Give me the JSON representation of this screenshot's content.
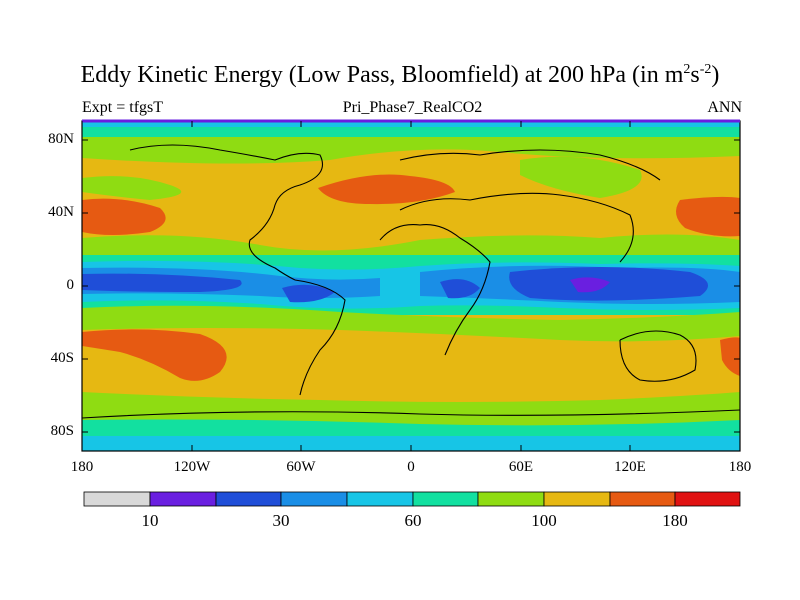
{
  "title": {
    "main": "Eddy Kinetic Energy (Low Pass, Bloomfield) at 200 hPa (in m",
    "sup1": "2",
    "mid": "s",
    "sup2": "-2",
    "close": ")"
  },
  "subtitle_left": "Expt = tfgsT",
  "subtitle_center": "Pri_Phase7_RealCO2",
  "subtitle_right": "ANN",
  "lat_labels": [
    "80N",
    "40N",
    "0",
    "40S",
    "80S"
  ],
  "lon_labels": [
    "180",
    "120W",
    "60W",
    "0",
    "60E",
    "120E",
    "180"
  ],
  "colorbar": {
    "colors": [
      "#d9d9d9",
      "#6a1fe0",
      "#1f4ed8",
      "#1a8ee6",
      "#17c5e6",
      "#12e0a0",
      "#8fdc12",
      "#e6b812",
      "#e65a12",
      "#e01212"
    ],
    "labels": [
      "10",
      "30",
      "60",
      "100",
      "180"
    ]
  },
  "map_palette": {
    "blue": "#1f4ed8",
    "lightblue": "#1a8ee6",
    "cyan": "#17c5e6",
    "teal": "#12e0a0",
    "green": "#8fdc12",
    "yellow": "#e6b812",
    "orange": "#e65a12",
    "purple": "#6a1fe0"
  }
}
